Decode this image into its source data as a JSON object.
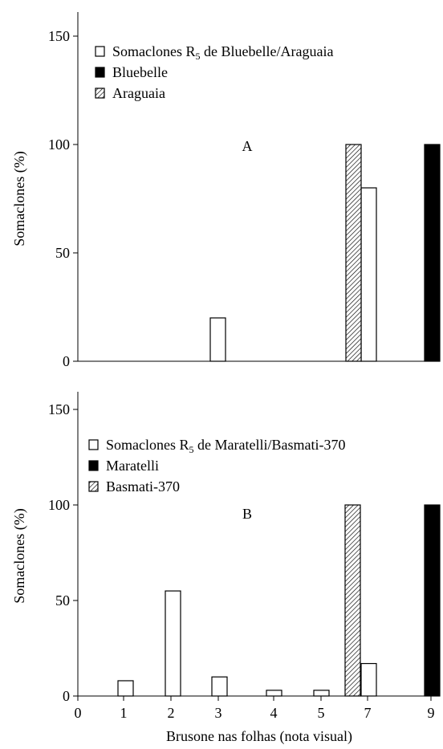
{
  "colors": {
    "axis": "#000000",
    "bar_somaclone": "#ffffff",
    "bar_parent_dark": "#000000",
    "hatch": "#000000"
  },
  "chart_data": [
    {
      "type": "bar",
      "panel_label": "A",
      "ylabel": "Somaclones (%)",
      "xlabel": "",
      "ylim": [
        0,
        150
      ],
      "yticks": [
        0,
        50,
        100,
        150
      ],
      "xticks": [
        "0",
        "1",
        "2",
        "3",
        "4",
        "5",
        "7",
        "9"
      ],
      "show_xtick_labels": false,
      "grid": false,
      "legend_position": "top-left",
      "series": [
        {
          "name": "Somaclones R5 de Bluebelle/Araguaia",
          "legend_text": "Somaclones R",
          "legend_sub": "5",
          "legend_rest": " de Bluebelle/Araguaia",
          "fill": "open",
          "points": [
            {
              "x": "3",
              "y": 20
            },
            {
              "x": "7",
              "y": 80
            }
          ]
        },
        {
          "name": "Bluebelle",
          "legend_text": "Bluebelle",
          "legend_sub": "",
          "legend_rest": "",
          "fill": "solid",
          "points": [
            {
              "x": "9",
              "y": 100
            }
          ]
        },
        {
          "name": "Araguaia",
          "legend_text": "Araguaia",
          "legend_sub": "",
          "legend_rest": "",
          "fill": "hatched",
          "points": [
            {
              "x": "5",
              "y": 100
            }
          ]
        }
      ]
    },
    {
      "type": "bar",
      "panel_label": "B",
      "ylabel": "Somaclones (%)",
      "xlabel": "Brusone nas folhas (nota visual)",
      "ylim": [
        0,
        150
      ],
      "yticks": [
        0,
        50,
        100,
        150
      ],
      "xticks": [
        "0",
        "1",
        "2",
        "3",
        "4",
        "5",
        "7",
        "9"
      ],
      "show_xtick_labels": true,
      "grid": false,
      "legend_position": "top-left",
      "series": [
        {
          "name": "Somaclones R5 de Maratelli/Basmati-370",
          "legend_text": "Somaclones R",
          "legend_sub": "5",
          "legend_rest": " de Maratelli/Basmati-370",
          "fill": "open",
          "points": [
            {
              "x": "1",
              "y": 8
            },
            {
              "x": "2",
              "y": 55
            },
            {
              "x": "3",
              "y": 10
            },
            {
              "x": "4",
              "y": 3
            },
            {
              "x": "5",
              "y": 3
            },
            {
              "x": "7",
              "y": 17
            }
          ]
        },
        {
          "name": "Maratelli",
          "legend_text": "Maratelli",
          "legend_sub": "",
          "legend_rest": "",
          "fill": "solid",
          "points": [
            {
              "x": "9",
              "y": 100
            }
          ]
        },
        {
          "name": "Basmati-370",
          "legend_text": "Basmati-370",
          "legend_sub": "",
          "legend_rest": "",
          "fill": "hatched",
          "points": [
            {
              "x": "5",
              "y": 100
            }
          ]
        }
      ]
    }
  ]
}
